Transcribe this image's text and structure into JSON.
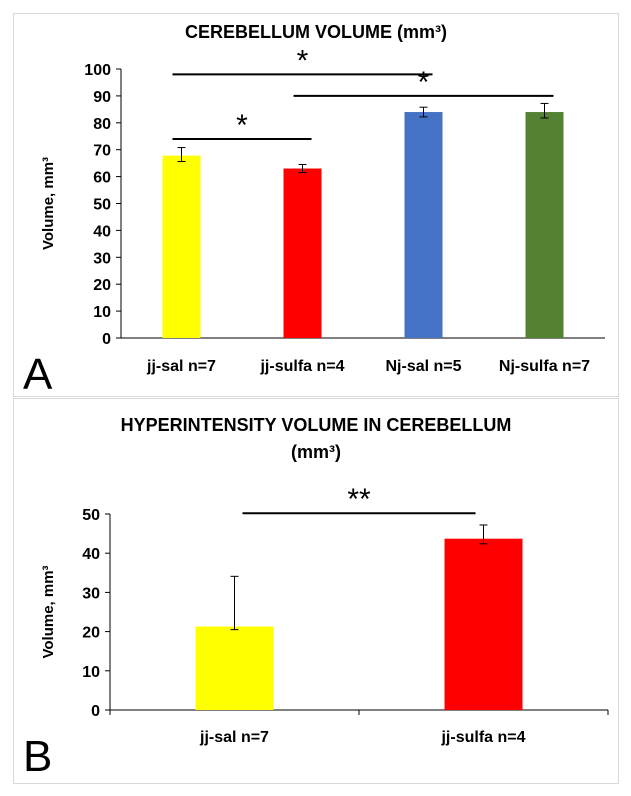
{
  "chart_data": [
    {
      "panel_label": "A",
      "type": "bar",
      "title": "CEREBELLUM VOLUME (mm³)",
      "ylabel": "Volume, mm³",
      "xlabel": "",
      "ylim": [
        0,
        100
      ],
      "yticks": [
        0,
        10,
        20,
        30,
        40,
        50,
        60,
        70,
        80,
        90,
        100
      ],
      "categories": [
        "jj-sal n=7",
        "jj-sulfa n=4",
        "Nj-sal n=5",
        "Nj-sulfa n=7"
      ],
      "values": [
        67.8,
        63,
        84,
        84
      ],
      "error_plus": [
        3,
        1.5,
        1.8,
        3.2
      ],
      "error_minus": [
        2.2,
        1.5,
        1.8,
        2.2
      ],
      "colors": [
        "#ffff00",
        "#ff0000",
        "#4472c4",
        "#548235"
      ],
      "grid": false,
      "significance": [
        {
          "from": 0,
          "to": 1,
          "y": 74,
          "label": "*"
        },
        {
          "from": 0,
          "to": 2,
          "y": 98,
          "label": "*"
        },
        {
          "from": 1,
          "to": 3,
          "y": 90,
          "label": "*"
        }
      ]
    },
    {
      "panel_label": "B",
      "type": "bar",
      "title": "HYPERINTENSITY VOLUME IN CEREBELLUM",
      "subtitle": "(mm³)",
      "ylabel": "Volume, mm³",
      "xlabel": "",
      "ylim": [
        0,
        50
      ],
      "yticks": [
        0,
        10,
        20,
        30,
        40,
        50
      ],
      "categories": [
        "jj-sal n=7",
        "jj-sulfa n=4"
      ],
      "values": [
        21.3,
        43.7
      ],
      "error_plus": [
        12.8,
        3.5
      ],
      "error_minus": [
        0.8,
        1.3
      ],
      "colors": [
        "#ffff00",
        "#ff0000"
      ],
      "grid": false,
      "significance": [
        {
          "from": 0,
          "to": 1,
          "y": 50.2,
          "label": "**"
        }
      ]
    }
  ]
}
